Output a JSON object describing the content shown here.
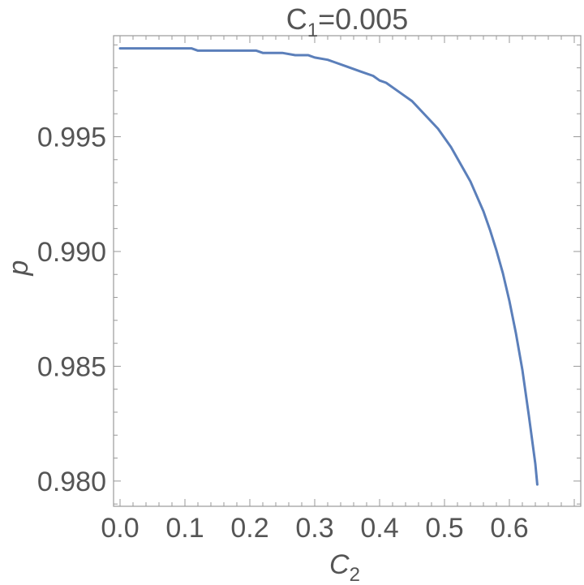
{
  "chart_data": {
    "type": "line",
    "title": {
      "prefix": "C",
      "sub": "1",
      "suffix": "=0.005"
    },
    "xlabel": {
      "main": "C",
      "sub": "2"
    },
    "ylabel": "p",
    "xlim": [
      -0.01,
      0.71
    ],
    "ylim": [
      0.9789,
      0.9994
    ],
    "x_ticks": [
      {
        "value": 0.0,
        "label": "0.0"
      },
      {
        "value": 0.1,
        "label": "0.1"
      },
      {
        "value": 0.2,
        "label": "0.2"
      },
      {
        "value": 0.3,
        "label": "0.3"
      },
      {
        "value": 0.4,
        "label": "0.4"
      },
      {
        "value": 0.5,
        "label": "0.5"
      },
      {
        "value": 0.6,
        "label": "0.6"
      }
    ],
    "y_ticks": [
      {
        "value": 0.98,
        "label": "0.980"
      },
      {
        "value": 0.985,
        "label": "0.985"
      },
      {
        "value": 0.99,
        "label": "0.990"
      },
      {
        "value": 0.995,
        "label": "0.995"
      }
    ],
    "grid": false,
    "colors": {
      "line": "#5b7fba",
      "frame": "#999999",
      "text": "#555555"
    },
    "series": [
      {
        "x": [
          0.0,
          0.05,
          0.11,
          0.12,
          0.16,
          0.21,
          0.22,
          0.25,
          0.27,
          0.29,
          0.3,
          0.32,
          0.33,
          0.35,
          0.37,
          0.39,
          0.4,
          0.41,
          0.43,
          0.45,
          0.47,
          0.49,
          0.51,
          0.53,
          0.54,
          0.56,
          0.57,
          0.58,
          0.59,
          0.6,
          0.61,
          0.62,
          0.63,
          0.64,
          0.643
        ],
        "y": [
          0.99885,
          0.99885,
          0.99885,
          0.99875,
          0.99875,
          0.99875,
          0.99865,
          0.99865,
          0.99855,
          0.99855,
          0.99845,
          0.99835,
          0.99825,
          0.99805,
          0.99785,
          0.99765,
          0.99745,
          0.99735,
          0.99695,
          0.99655,
          0.99595,
          0.99535,
          0.99455,
          0.99355,
          0.99305,
          0.99175,
          0.99095,
          0.99005,
          0.98905,
          0.98785,
          0.98645,
          0.98485,
          0.98285,
          0.98075,
          0.97985
        ]
      }
    ]
  }
}
